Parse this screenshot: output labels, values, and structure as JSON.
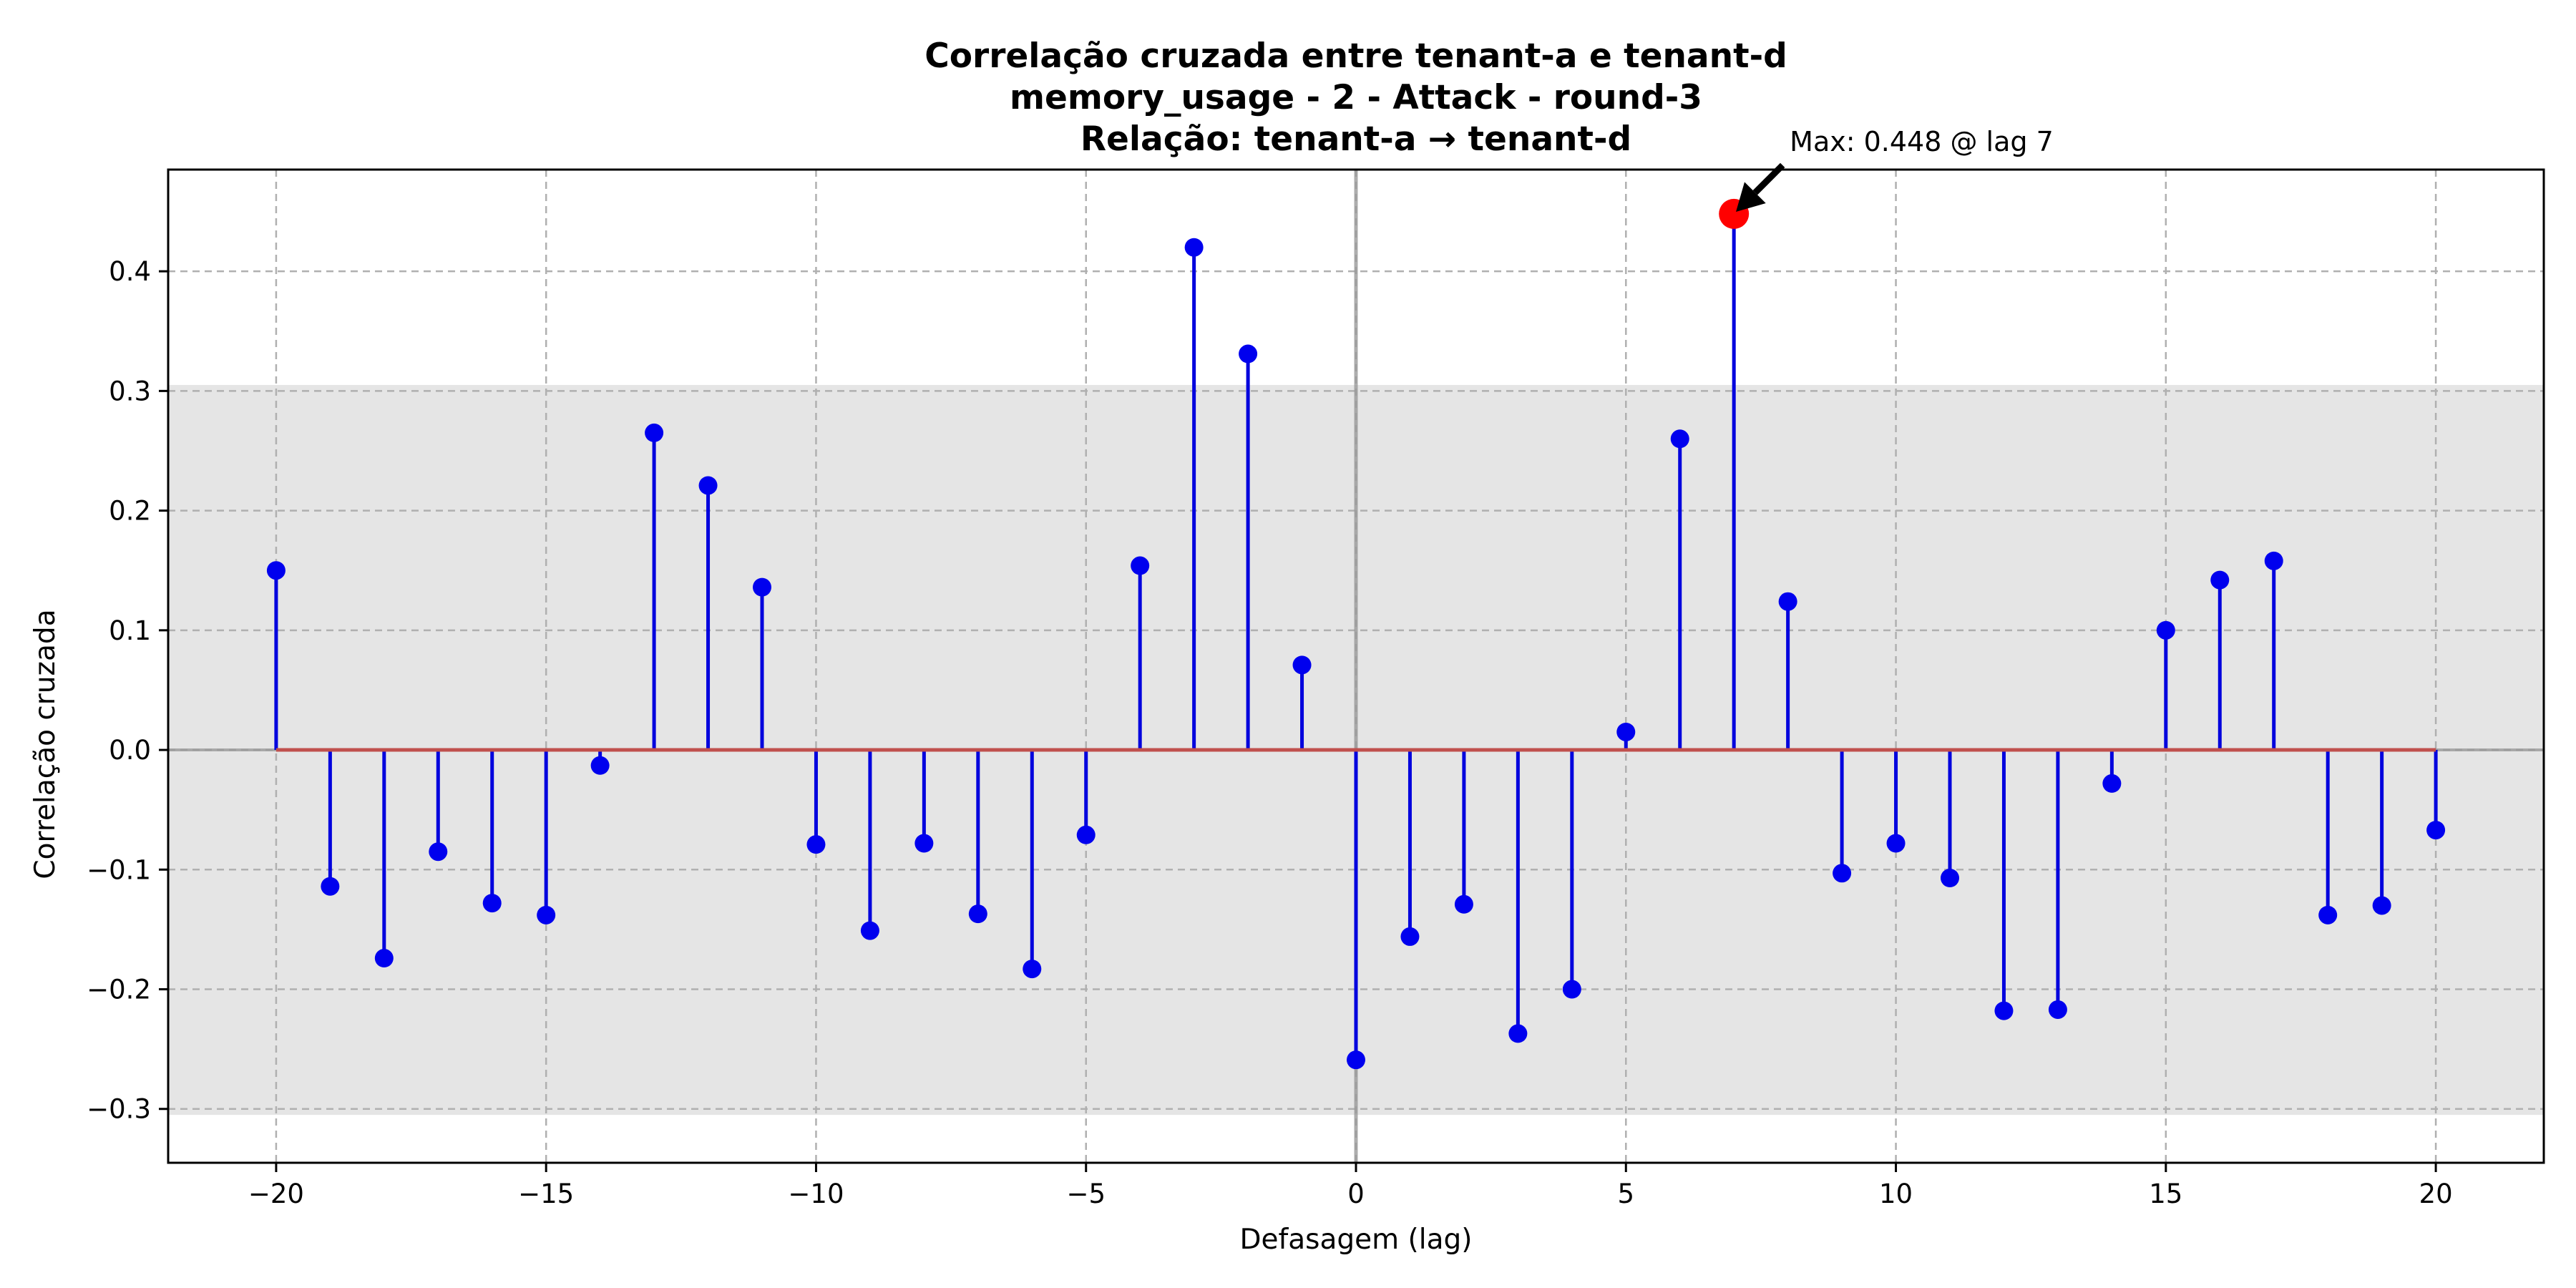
{
  "chart_data": {
    "type": "stem",
    "title": [
      "Correlação cruzada entre tenant-a e tenant-d",
      "memory_usage - 2 - Attack - round-3",
      "Relação: tenant-a → tenant-d"
    ],
    "xlabel": "Defasagem (lag)",
    "ylabel": "Correlação cruzada",
    "xlim": [
      -22,
      22
    ],
    "ylim": [
      -0.345,
      0.485
    ],
    "xticks": [
      -20,
      -15,
      -10,
      -5,
      0,
      5,
      10,
      15,
      20
    ],
    "xtick_labels": [
      "−20",
      "−15",
      "−10",
      "−5",
      "0",
      "5",
      "10",
      "15",
      "20"
    ],
    "yticks": [
      -0.3,
      -0.2,
      -0.1,
      0.0,
      0.1,
      0.2,
      0.3,
      0.4
    ],
    "ytick_labels": [
      "−0.3",
      "−0.2",
      "−0.1",
      "0.0",
      "0.1",
      "0.2",
      "0.3",
      "0.4"
    ],
    "grid": true,
    "confidence_band": [
      -0.305,
      0.305
    ],
    "x": [
      -20,
      -19,
      -18,
      -17,
      -16,
      -15,
      -14,
      -13,
      -12,
      -11,
      -10,
      -9,
      -8,
      -7,
      -6,
      -5,
      -4,
      -3,
      -2,
      -1,
      0,
      1,
      2,
      3,
      4,
      5,
      6,
      7,
      8,
      9,
      10,
      11,
      12,
      13,
      14,
      15,
      16,
      17,
      18,
      19,
      20
    ],
    "values": [
      0.15,
      -0.114,
      -0.174,
      -0.085,
      -0.128,
      -0.138,
      -0.013,
      0.265,
      0.221,
      0.136,
      -0.079,
      -0.151,
      -0.078,
      -0.137,
      -0.183,
      -0.071,
      0.154,
      0.42,
      0.331,
      0.071,
      -0.259,
      -0.156,
      -0.129,
      -0.237,
      -0.2,
      0.015,
      0.26,
      0.448,
      0.124,
      -0.103,
      -0.078,
      -0.107,
      -0.218,
      -0.217,
      -0.028,
      0.1,
      0.142,
      0.158,
      -0.138,
      -0.13,
      -0.067
    ],
    "colors": {
      "stem": "#0000dd",
      "marker": "#0000ee",
      "baseline": "#c0504d",
      "max_marker": "#ff0000",
      "band": "#e5e5e5",
      "zero_lines": "#999999"
    },
    "annotation": {
      "text": "Max: 0.448 @ lag 7",
      "lag": 7,
      "value": 0.448
    }
  }
}
